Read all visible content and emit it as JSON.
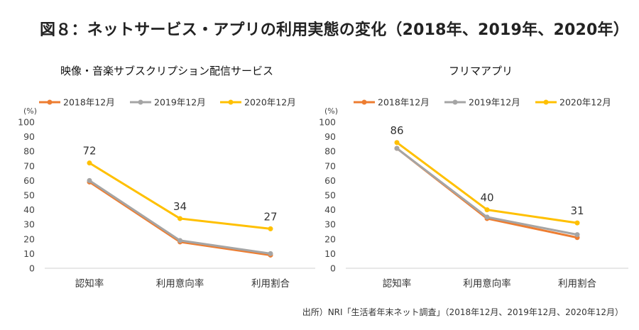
{
  "title": "図８：ネットサービス・アプリの利用実態の変化（2018年、2019年、2020年）",
  "source": "出所）NRI「生活者年末ネット調査」（2018年12月、2019年12月、2020年12月）",
  "colors": {
    "s2018": "#ED7D31",
    "s2019": "#A5A5A5",
    "s2020": "#FFC000"
  },
  "chart_data": [
    {
      "type": "line",
      "title": "映像・音楽サブスクリプション配信サービス",
      "ylabel": "(%)",
      "ylim": [
        0,
        100
      ],
      "yticks": [
        "0",
        "10",
        "20",
        "30",
        "40",
        "50",
        "60",
        "70",
        "80",
        "90",
        "100"
      ],
      "categories": [
        "認知率",
        "利用意向率",
        "利用割合"
      ],
      "grid": false,
      "legend": "top",
      "series": [
        {
          "name": "2018年12月",
          "values": [
            59,
            18,
            9
          ]
        },
        {
          "name": "2019年12月",
          "values": [
            60,
            19,
            10
          ]
        },
        {
          "name": "2020年12月",
          "values": [
            72,
            34,
            27
          ]
        }
      ],
      "data_labels": [
        "72",
        "34",
        "27"
      ]
    },
    {
      "type": "line",
      "title": "フリマアプリ",
      "ylabel": "(%)",
      "ylim": [
        0,
        100
      ],
      "yticks": [
        "0",
        "10",
        "20",
        "30",
        "40",
        "50",
        "60",
        "70",
        "80",
        "90",
        "100"
      ],
      "categories": [
        "認知率",
        "利用意向率",
        "利用割合"
      ],
      "grid": false,
      "legend": "top",
      "series": [
        {
          "name": "2018年12月",
          "values": [
            82,
            34,
            21
          ]
        },
        {
          "name": "2019年12月",
          "values": [
            82,
            35,
            23
          ]
        },
        {
          "name": "2020年12月",
          "values": [
            86,
            40,
            31
          ]
        }
      ],
      "data_labels": [
        "86",
        "40",
        "31"
      ]
    }
  ]
}
